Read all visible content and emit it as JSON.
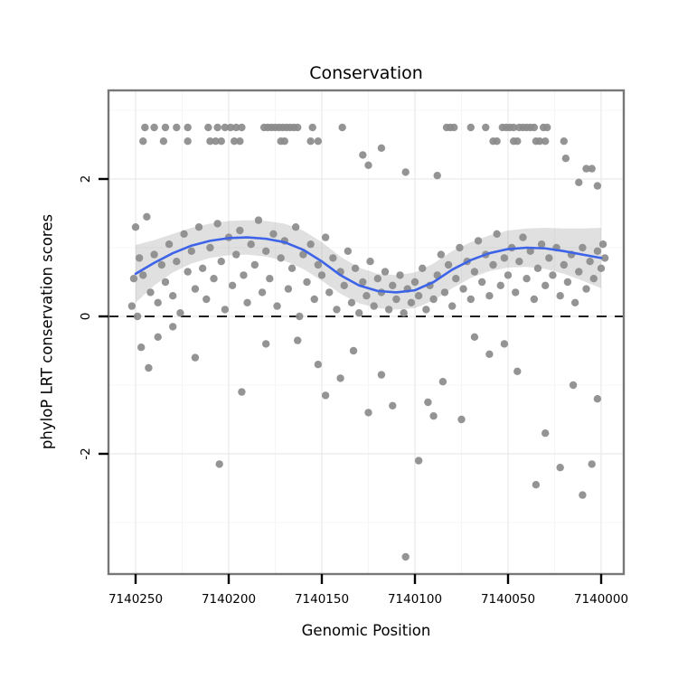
{
  "chart_data": {
    "type": "scatter",
    "title": "Conservation",
    "xlabel": "Genomic Position",
    "ylabel": "phyloP LRT conservation scores",
    "x_ticks": [
      7140250,
      7140200,
      7140150,
      7140100,
      7140050,
      7140000
    ],
    "x_reversed": true,
    "xlim": [
      7140255,
      7139995
    ],
    "y_ticks": [
      -2,
      0,
      2
    ],
    "ylim": [
      -3.75,
      3.29
    ],
    "reference_line_y": 0,
    "grid": true,
    "legend": "none",
    "colors": {
      "point": "#8C8C8C",
      "smooth": "#3D64E8",
      "ribbon": "#9E9E9E",
      "grid_major": "#EAEAEA",
      "grid_minor": "#F5F5F5",
      "panel_border": "#777777",
      "reference_line": "#000000"
    },
    "smooth": {
      "x": [
        7140250,
        7140240,
        7140230,
        7140220,
        7140210,
        7140200,
        7140190,
        7140180,
        7140170,
        7140160,
        7140150,
        7140140,
        7140130,
        7140120,
        7140110,
        7140100,
        7140090,
        7140080,
        7140070,
        7140060,
        7140050,
        7140040,
        7140030,
        7140020,
        7140010,
        7140000
      ],
      "y": [
        0.62,
        0.78,
        0.92,
        1.03,
        1.1,
        1.14,
        1.15,
        1.13,
        1.08,
        0.97,
        0.8,
        0.6,
        0.45,
        0.37,
        0.35,
        0.38,
        0.5,
        0.68,
        0.82,
        0.92,
        0.98,
        1.0,
        0.99,
        0.95,
        0.9,
        0.85
      ],
      "lower": [
        0.2,
        0.45,
        0.64,
        0.77,
        0.85,
        0.89,
        0.9,
        0.87,
        0.81,
        0.69,
        0.52,
        0.33,
        0.19,
        0.12,
        0.1,
        0.12,
        0.23,
        0.41,
        0.56,
        0.66,
        0.71,
        0.72,
        0.69,
        0.62,
        0.52,
        0.41
      ],
      "upper": [
        1.04,
        1.11,
        1.2,
        1.29,
        1.35,
        1.39,
        1.4,
        1.39,
        1.35,
        1.25,
        1.08,
        0.87,
        0.71,
        0.62,
        0.6,
        0.64,
        0.77,
        0.95,
        1.08,
        1.18,
        1.25,
        1.28,
        1.29,
        1.28,
        1.28,
        1.29
      ]
    },
    "points": [
      [
        7140245,
        2.75
      ],
      [
        7140240,
        2.75
      ],
      [
        7140234,
        2.75
      ],
      [
        7140228,
        2.75
      ],
      [
        7140222,
        2.75
      ],
      [
        7140211,
        2.75
      ],
      [
        7140206,
        2.75
      ],
      [
        7140202,
        2.75
      ],
      [
        7140199,
        2.75
      ],
      [
        7140196,
        2.75
      ],
      [
        7140193,
        2.75
      ],
      [
        7140181,
        2.75
      ],
      [
        7140179,
        2.75
      ],
      [
        7140177,
        2.75
      ],
      [
        7140175,
        2.75
      ],
      [
        7140173,
        2.75
      ],
      [
        7140171,
        2.75
      ],
      [
        7140169,
        2.75
      ],
      [
        7140167,
        2.75
      ],
      [
        7140165,
        2.75
      ],
      [
        7140163,
        2.75
      ],
      [
        7140155,
        2.75
      ],
      [
        7140139,
        2.75
      ],
      [
        7140083,
        2.75
      ],
      [
        7140081,
        2.75
      ],
      [
        7140079,
        2.75
      ],
      [
        7140070,
        2.75
      ],
      [
        7140062,
        2.75
      ],
      [
        7140053,
        2.75
      ],
      [
        7140051,
        2.75
      ],
      [
        7140049,
        2.75
      ],
      [
        7140047,
        2.75
      ],
      [
        7140044,
        2.75
      ],
      [
        7140042,
        2.75
      ],
      [
        7140040,
        2.75
      ],
      [
        7140038,
        2.75
      ],
      [
        7140036,
        2.75
      ],
      [
        7140031,
        2.75
      ],
      [
        7140029,
        2.75
      ],
      [
        7140246,
        2.55
      ],
      [
        7140235,
        2.55
      ],
      [
        7140222,
        2.55
      ],
      [
        7140210,
        2.55
      ],
      [
        7140207,
        2.55
      ],
      [
        7140204,
        2.55
      ],
      [
        7140197,
        2.55
      ],
      [
        7140194,
        2.55
      ],
      [
        7140172,
        2.55
      ],
      [
        7140170,
        2.55
      ],
      [
        7140156,
        2.55
      ],
      [
        7140152,
        2.55
      ],
      [
        7140058,
        2.55
      ],
      [
        7140056,
        2.55
      ],
      [
        7140047,
        2.55
      ],
      [
        7140045,
        2.55
      ],
      [
        7140035,
        2.55
      ],
      [
        7140033,
        2.55
      ],
      [
        7140030,
        2.55
      ],
      [
        7140020,
        2.55
      ],
      [
        7140128,
        2.35
      ],
      [
        7140125,
        2.2
      ],
      [
        7140118,
        2.45
      ],
      [
        7140105,
        2.1
      ],
      [
        7140088,
        2.05
      ],
      [
        7140019,
        2.3
      ],
      [
        7140012,
        1.95
      ],
      [
        7140008,
        2.15
      ],
      [
        7140005,
        2.15
      ],
      [
        7140002,
        1.9
      ],
      [
        7140247,
        -0.45
      ],
      [
        7140243,
        -0.75
      ],
      [
        7140238,
        -0.3
      ],
      [
        7140230,
        -0.15
      ],
      [
        7140218,
        -0.6
      ],
      [
        7140205,
        -2.15
      ],
      [
        7140193,
        -1.1
      ],
      [
        7140180,
        -0.4
      ],
      [
        7140163,
        -0.35
      ],
      [
        7140152,
        -0.7
      ],
      [
        7140148,
        -1.15
      ],
      [
        7140140,
        -0.9
      ],
      [
        7140133,
        -0.5
      ],
      [
        7140125,
        -1.4
      ],
      [
        7140118,
        -0.85
      ],
      [
        7140112,
        -1.3
      ],
      [
        7140105,
        -3.5
      ],
      [
        7140098,
        -2.1
      ],
      [
        7140093,
        -1.25
      ],
      [
        7140090,
        -1.45
      ],
      [
        7140085,
        -0.95
      ],
      [
        7140075,
        -1.5
      ],
      [
        7140068,
        -0.3
      ],
      [
        7140060,
        -0.55
      ],
      [
        7140052,
        -0.4
      ],
      [
        7140045,
        -0.8
      ],
      [
        7140035,
        -2.45
      ],
      [
        7140030,
        -1.7
      ],
      [
        7140022,
        -2.2
      ],
      [
        7140015,
        -1.0
      ],
      [
        7140010,
        -2.6
      ],
      [
        7140005,
        -2.15
      ],
      [
        7140002,
        -1.2
      ],
      [
        7140252,
        0.15
      ],
      [
        7140251,
        0.55
      ],
      [
        7140250,
        1.3
      ],
      [
        7140249,
        0.0
      ],
      [
        7140248,
        0.85
      ],
      [
        7140246,
        0.6
      ],
      [
        7140244,
        1.45
      ],
      [
        7140242,
        0.35
      ],
      [
        7140240,
        0.9
      ],
      [
        7140238,
        0.2
      ],
      [
        7140236,
        0.75
      ],
      [
        7140234,
        0.5
      ],
      [
        7140232,
        1.05
      ],
      [
        7140230,
        0.3
      ],
      [
        7140228,
        0.8
      ],
      [
        7140226,
        0.05
      ],
      [
        7140224,
        1.2
      ],
      [
        7140222,
        0.65
      ],
      [
        7140220,
        0.95
      ],
      [
        7140218,
        0.4
      ],
      [
        7140216,
        1.3
      ],
      [
        7140214,
        0.7
      ],
      [
        7140212,
        0.25
      ],
      [
        7140210,
        1.0
      ],
      [
        7140208,
        0.55
      ],
      [
        7140206,
        1.35
      ],
      [
        7140204,
        0.8
      ],
      [
        7140202,
        0.1
      ],
      [
        7140200,
        1.15
      ],
      [
        7140198,
        0.45
      ],
      [
        7140196,
        0.9
      ],
      [
        7140194,
        1.25
      ],
      [
        7140192,
        0.6
      ],
      [
        7140190,
        0.2
      ],
      [
        7140188,
        1.05
      ],
      [
        7140186,
        0.75
      ],
      [
        7140184,
        1.4
      ],
      [
        7140182,
        0.35
      ],
      [
        7140180,
        0.95
      ],
      [
        7140178,
        0.55
      ],
      [
        7140176,
        1.2
      ],
      [
        7140174,
        0.15
      ],
      [
        7140172,
        0.85
      ],
      [
        7140170,
        1.1
      ],
      [
        7140168,
        0.4
      ],
      [
        7140166,
        0.7
      ],
      [
        7140164,
        1.3
      ],
      [
        7140162,
        0.0
      ],
      [
        7140160,
        0.9
      ],
      [
        7140158,
        0.5
      ],
      [
        7140156,
        1.05
      ],
      [
        7140154,
        0.25
      ],
      [
        7140152,
        0.75
      ],
      [
        7140150,
        0.6
      ],
      [
        7140148,
        1.15
      ],
      [
        7140146,
        0.35
      ],
      [
        7140144,
        0.85
      ],
      [
        7140142,
        0.1
      ],
      [
        7140140,
        0.65
      ],
      [
        7140138,
        0.45
      ],
      [
        7140136,
        0.95
      ],
      [
        7140134,
        0.2
      ],
      [
        7140132,
        0.7
      ],
      [
        7140130,
        0.05
      ],
      [
        7140128,
        0.5
      ],
      [
        7140126,
        0.3
      ],
      [
        7140124,
        0.8
      ],
      [
        7140122,
        0.15
      ],
      [
        7140120,
        0.55
      ],
      [
        7140118,
        0.35
      ],
      [
        7140116,
        0.65
      ],
      [
        7140114,
        0.1
      ],
      [
        7140112,
        0.45
      ],
      [
        7140110,
        0.25
      ],
      [
        7140108,
        0.6
      ],
      [
        7140106,
        0.05
      ],
      [
        7140104,
        0.4
      ],
      [
        7140102,
        0.2
      ],
      [
        7140100,
        0.5
      ],
      [
        7140098,
        0.3
      ],
      [
        7140096,
        0.7
      ],
      [
        7140094,
        0.1
      ],
      [
        7140092,
        0.45
      ],
      [
        7140090,
        0.25
      ],
      [
        7140088,
        0.6
      ],
      [
        7140086,
        0.9
      ],
      [
        7140084,
        0.35
      ],
      [
        7140082,
        0.75
      ],
      [
        7140080,
        0.15
      ],
      [
        7140078,
        0.55
      ],
      [
        7140076,
        1.0
      ],
      [
        7140074,
        0.4
      ],
      [
        7140072,
        0.8
      ],
      [
        7140070,
        0.25
      ],
      [
        7140068,
        0.65
      ],
      [
        7140066,
        1.1
      ],
      [
        7140064,
        0.5
      ],
      [
        7140062,
        0.9
      ],
      [
        7140060,
        0.3
      ],
      [
        7140058,
        0.75
      ],
      [
        7140056,
        1.2
      ],
      [
        7140054,
        0.45
      ],
      [
        7140052,
        0.85
      ],
      [
        7140050,
        0.6
      ],
      [
        7140048,
        1.0
      ],
      [
        7140046,
        0.35
      ],
      [
        7140044,
        0.8
      ],
      [
        7140042,
        1.15
      ],
      [
        7140040,
        0.55
      ],
      [
        7140038,
        0.95
      ],
      [
        7140036,
        0.25
      ],
      [
        7140034,
        0.7
      ],
      [
        7140032,
        1.05
      ],
      [
        7140030,
        0.45
      ],
      [
        7140028,
        0.85
      ],
      [
        7140026,
        0.6
      ],
      [
        7140024,
        1.0
      ],
      [
        7140022,
        0.3
      ],
      [
        7140020,
        0.75
      ],
      [
        7140018,
        0.5
      ],
      [
        7140016,
        0.9
      ],
      [
        7140014,
        0.2
      ],
      [
        7140012,
        0.65
      ],
      [
        7140010,
        1.0
      ],
      [
        7140008,
        0.4
      ],
      [
        7140006,
        0.8
      ],
      [
        7140004,
        0.55
      ],
      [
        7140002,
        0.95
      ],
      [
        7140000,
        0.7
      ],
      [
        7139999,
        1.05
      ],
      [
        7139998,
        0.85
      ]
    ]
  }
}
